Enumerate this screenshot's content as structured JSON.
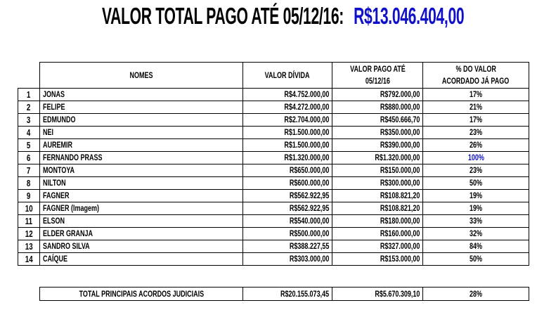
{
  "title": {
    "text": "VALOR TOTAL PAGO ATÉ 05/12/16:",
    "amount": "R$13.046.404,00",
    "amount_color": "#1010c8"
  },
  "table": {
    "headers": {
      "names": "NOMES",
      "debt": "VALOR DÍVIDA",
      "paid_line1": "VALOR PAGO ATÉ",
      "paid_line2": "05/12/16",
      "pct_line1": "% DO VALOR",
      "pct_line2": "ACORDADO JÁ PAGO"
    },
    "rows": [
      {
        "n": "1",
        "name": "JONAS",
        "debt": "R$4.752.000,00",
        "paid": "R$792.000,00",
        "pct": "17%"
      },
      {
        "n": "2",
        "name": "FELIPE",
        "debt": "R$4.272.000,00",
        "paid": "R$880.000,00",
        "pct": "21%"
      },
      {
        "n": "3",
        "name": "EDMUNDO",
        "debt": "R$2.704.000,00",
        "paid": "R$450.666,70",
        "pct": "17%"
      },
      {
        "n": "4",
        "name": "NEI",
        "debt": "R$1.500.000,00",
        "paid": "R$350.000,00",
        "pct": "23%"
      },
      {
        "n": "5",
        "name": "AUREMIR",
        "debt": "R$1.500.000,00",
        "paid": "R$390.000,00",
        "pct": "26%"
      },
      {
        "n": "6",
        "name": "FERNANDO PRASS",
        "debt": "R$1.320.000,00",
        "paid": "R$1.320.000,00",
        "pct": "100%",
        "highlight": true
      },
      {
        "n": "7",
        "name": "MONTOYA",
        "debt": "R$650.000,00",
        "paid": "R$150.000,00",
        "pct": "23%"
      },
      {
        "n": "8",
        "name": "NILTON",
        "debt": "R$600.000,00",
        "paid": "R$300.000,00",
        "pct": "50%"
      },
      {
        "n": "9",
        "name": "FAGNER",
        "debt": "R$562.922,95",
        "paid": "R$108.821,20",
        "pct": "19%"
      },
      {
        "n": "10",
        "name": "FAGNER (Imagem)",
        "debt": "R$562.922,95",
        "paid": "R$108.821,20",
        "pct": "19%"
      },
      {
        "n": "11",
        "name": "ELSON",
        "debt": "R$540.000,00",
        "paid": "R$180.000,00",
        "pct": "33%"
      },
      {
        "n": "12",
        "name": "ELDER GRANJA",
        "debt": "R$500.000,00",
        "paid": "R$160.000,00",
        "pct": "32%"
      },
      {
        "n": "13",
        "name": "SANDRO SILVA",
        "debt": "R$388.227,55",
        "paid": "R$327.000,00",
        "pct": "84%"
      },
      {
        "n": "14",
        "name": "CAÍQUE",
        "debt": "R$303.000,00",
        "paid": "R$153.000,00",
        "pct": "50%"
      }
    ]
  },
  "total": {
    "label": "TOTAL PRINCIPAIS ACORDOS JUDICIAIS",
    "debt": "R$20.155.073,45",
    "paid": "R$5.670.309,10",
    "pct": "28%"
  }
}
